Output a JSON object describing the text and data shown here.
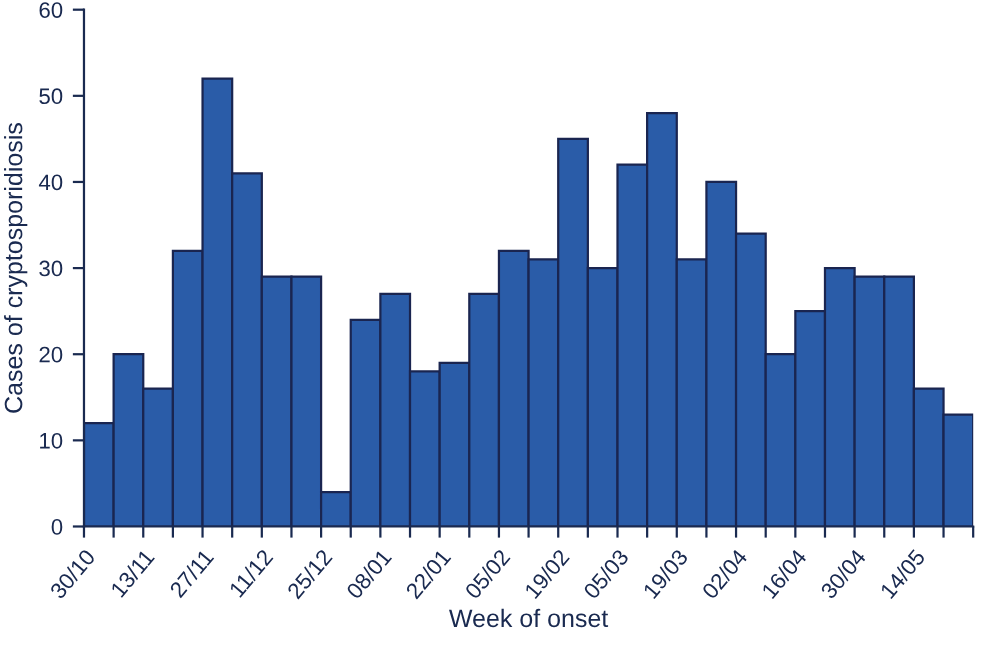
{
  "chart_data": {
    "type": "bar",
    "xlabel": "Week of onset",
    "ylabel": "Cases of cryptosporidiosis",
    "categories": [
      "30/10",
      null,
      "13/11",
      null,
      "27/11",
      null,
      "11/12",
      null,
      "25/12",
      null,
      "08/01",
      null,
      "22/01",
      null,
      "05/02",
      null,
      "19/02",
      null,
      "05/03",
      null,
      "19/03",
      null,
      "02/04",
      null,
      "16/04",
      null,
      "30/04",
      null,
      "14/05",
      null
    ],
    "values": [
      12,
      20,
      16,
      32,
      52,
      41,
      29,
      29,
      4,
      24,
      27,
      18,
      19,
      27,
      32,
      31,
      45,
      30,
      42,
      48,
      31,
      40,
      34,
      20,
      25,
      30,
      29,
      29,
      16,
      13
    ],
    "color": "#2a5ca8",
    "ylim": [
      0,
      60
    ],
    "yticks": [
      0,
      10,
      20,
      30,
      40,
      50,
      60
    ],
    "grid": false,
    "legend": false
  }
}
